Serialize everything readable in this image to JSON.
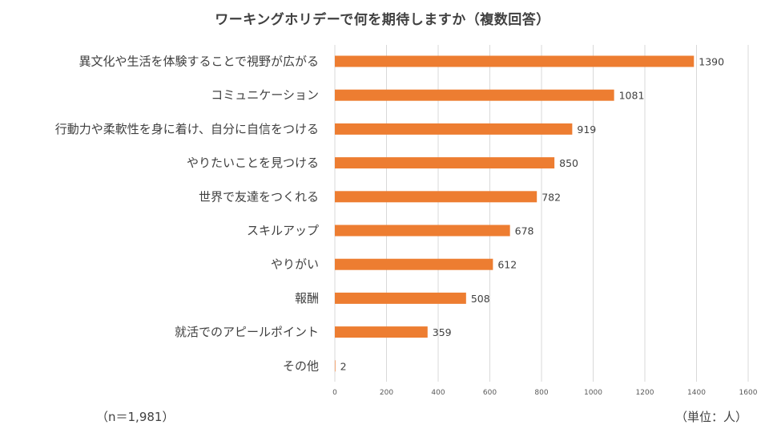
{
  "chart_data": {
    "type": "bar",
    "orientation": "horizontal",
    "title": "ワーキングホリデーで何を期待しますか（複数回答）",
    "categories": [
      "異文化や生活を体験することで視野が広がる",
      "コミュニケーション",
      "行動力や柔軟性を身に着け、自分に自信をつける",
      "やりたいことを見つける",
      "世界で友達をつくれる",
      "スキルアップ",
      "やりがい",
      "報酬",
      "就活でのアピールポイント",
      "その他"
    ],
    "values": [
      1390,
      1081,
      919,
      850,
      782,
      678,
      612,
      508,
      359,
      2
    ],
    "xlim": [
      0,
      1600
    ],
    "xticks": [
      0,
      200,
      400,
      600,
      800,
      1000,
      1200,
      1400,
      1600
    ],
    "grid": true,
    "bar_color": "#ED7D31",
    "sample_note": "（n＝1,981）",
    "unit_note": "（単位：人）"
  }
}
